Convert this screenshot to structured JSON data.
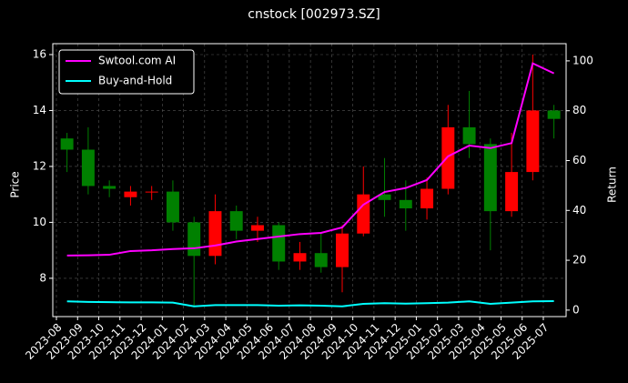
{
  "chart_data": {
    "type": "candlestick",
    "title": "cnstock [002973.SZ]",
    "y_label": "Price",
    "y2_label": "Return",
    "x": [
      "2023-08",
      "2023-09",
      "2023-10",
      "2023-11",
      "2023-12",
      "2024-01",
      "2024-02",
      "2024-03",
      "2024-04",
      "2024-05",
      "2024-06",
      "2024-07",
      "2024-08",
      "2024-09",
      "2024-10",
      "2024-11",
      "2024-12",
      "2025-01",
      "2025-02",
      "2025-03",
      "2025-04",
      "2025-05",
      "2025-06",
      "2025-07"
    ],
    "open": [
      13.0,
      12.6,
      11.3,
      10.9,
      11.1,
      11.1,
      10.0,
      8.8,
      10.4,
      9.7,
      9.9,
      8.6,
      8.9,
      8.4,
      9.6,
      11.0,
      10.8,
      10.5,
      11.2,
      13.4,
      12.8,
      10.4,
      11.8,
      14.0
    ],
    "high": [
      13.2,
      13.4,
      11.5,
      11.3,
      11.3,
      11.5,
      10.2,
      11.0,
      10.6,
      10.2,
      10.0,
      9.3,
      9.6,
      9.9,
      12.0,
      12.3,
      11.5,
      11.6,
      14.2,
      14.7,
      13.0,
      13.2,
      16.0,
      14.2
    ],
    "low": [
      11.8,
      11.0,
      10.9,
      10.6,
      10.8,
      9.7,
      7.0,
      8.5,
      9.4,
      9.3,
      8.3,
      8.3,
      8.2,
      7.5,
      9.5,
      10.2,
      9.7,
      10.1,
      11.0,
      12.3,
      9.0,
      10.2,
      11.5,
      13.0
    ],
    "close": [
      12.6,
      11.3,
      11.2,
      11.1,
      11.1,
      10.0,
      8.8,
      10.4,
      9.7,
      9.9,
      8.6,
      8.9,
      8.4,
      9.6,
      11.0,
      10.8,
      10.5,
      11.2,
      13.4,
      12.8,
      10.4,
      11.8,
      14.0,
      13.7
    ],
    "up_color": "#ff0000",
    "down_color": "#008000",
    "series": [
      {
        "name": "Swtool.com AI",
        "color": "#ff00ff",
        "axis": "y2",
        "values": [
          21.9,
          22.0,
          22.2,
          23.7,
          24.0,
          24.5,
          24.8,
          25.9,
          27.5,
          28.5,
          29.5,
          30.5,
          31.0,
          33.2,
          42.3,
          47.4,
          49.0,
          52.2,
          61.7,
          66.0,
          65.0,
          67.0,
          99.0,
          95.0
        ]
      },
      {
        "name": "Buy-and-Hold",
        "color": "#00ffff",
        "axis": "y2",
        "values": [
          3.5,
          3.3,
          3.2,
          3.1,
          3.1,
          3.0,
          1.5,
          2.0,
          2.0,
          2.0,
          1.8,
          1.9,
          1.8,
          1.5,
          2.5,
          2.8,
          2.6,
          2.8,
          3.0,
          3.5,
          2.5,
          3.0,
          3.5,
          3.6
        ]
      }
    ],
    "ylim": [
      6.63,
      16.39
    ],
    "yticks": [
      8,
      10,
      12,
      14,
      16
    ],
    "y2lim": [
      -2.6,
      106.9
    ],
    "y2ticks": [
      0,
      20,
      40,
      60,
      80,
      100
    ],
    "grid": true,
    "legend": "upper left"
  }
}
